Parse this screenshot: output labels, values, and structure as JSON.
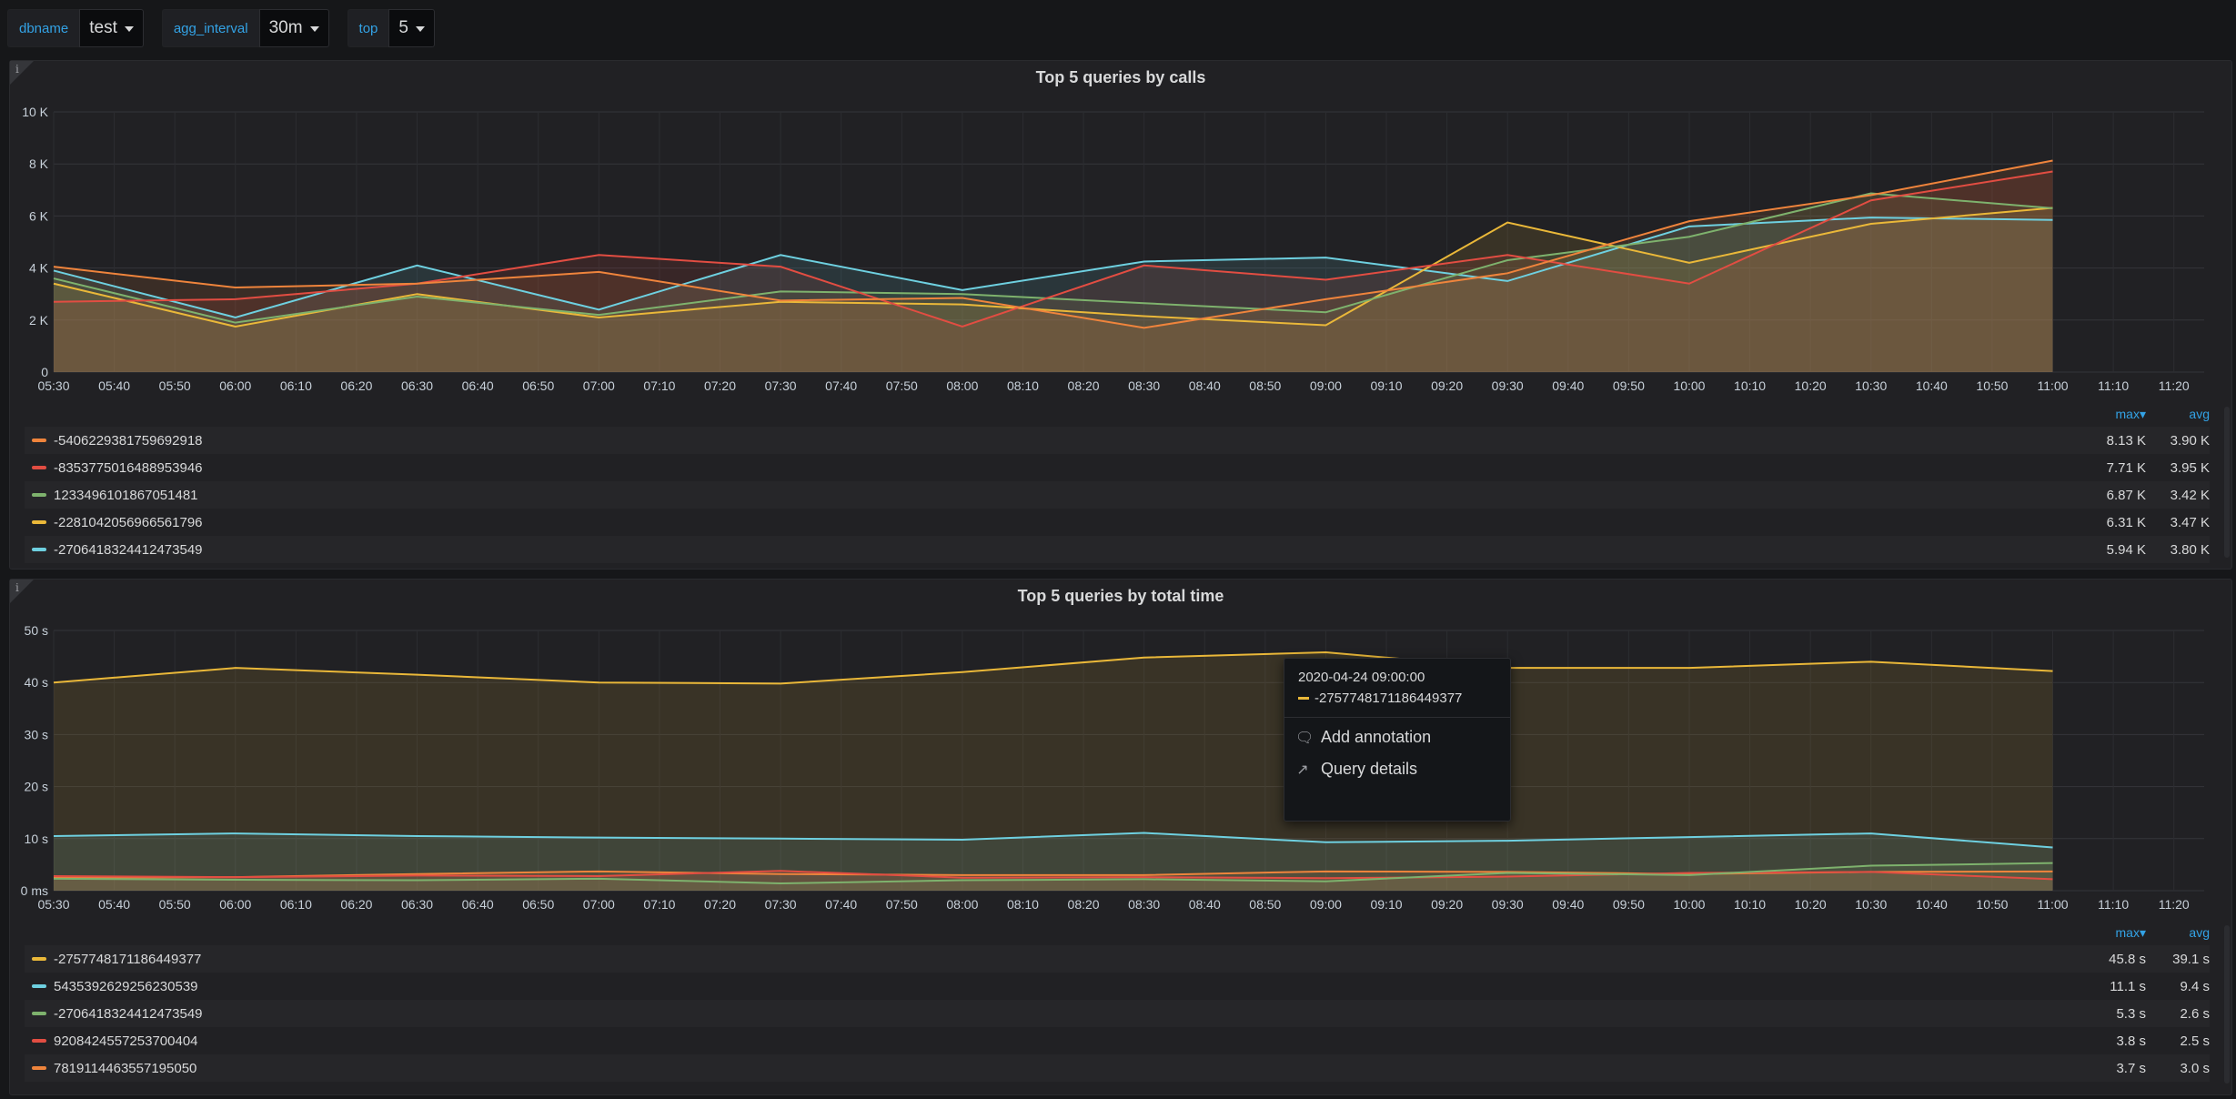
{
  "variables": [
    {
      "label": "dbname",
      "value": "test"
    },
    {
      "label": "agg_interval",
      "value": "30m"
    },
    {
      "label": "top",
      "value": "5"
    }
  ],
  "colors": {
    "orange": "#ef843c",
    "red": "#e24d42",
    "green": "#7eb26d",
    "yellow": "#eab839",
    "cyan": "#6ed0e0",
    "accent": "#33a2e5"
  },
  "time_labels": [
    "05:30",
    "05:40",
    "05:50",
    "06:00",
    "06:10",
    "06:20",
    "06:30",
    "06:40",
    "06:50",
    "07:00",
    "07:10",
    "07:20",
    "07:30",
    "07:40",
    "07:50",
    "08:00",
    "08:10",
    "08:20",
    "08:30",
    "08:40",
    "08:50",
    "09:00",
    "09:10",
    "09:20",
    "09:30",
    "09:40",
    "09:50",
    "10:00",
    "10:10",
    "10:20",
    "10:30",
    "10:40",
    "10:50",
    "11:00",
    "11:10",
    "11:20"
  ],
  "panels": [
    {
      "info_icon": "i",
      "title": "Top 5 queries by calls",
      "legend_headers": {
        "max": "max▾",
        "avg": "avg"
      },
      "legend": [
        {
          "name": "-5406229381759692918",
          "color": "#ef843c",
          "max": "8.13 K",
          "avg": "3.90 K"
        },
        {
          "name": "-8353775016488953946",
          "color": "#e24d42",
          "max": "7.71 K",
          "avg": "3.95 K"
        },
        {
          "name": "1233496101867051481",
          "color": "#7eb26d",
          "max": "6.87 K",
          "avg": "3.42 K"
        },
        {
          "name": "-2281042056966561796",
          "color": "#eab839",
          "max": "6.31 K",
          "avg": "3.47 K"
        },
        {
          "name": "-2706418324412473549",
          "color": "#6ed0e0",
          "max": "5.94 K",
          "avg": "3.80 K"
        }
      ],
      "chart_data": {
        "type": "area",
        "title": "Top 5 queries by calls",
        "y_ticks": [
          "0",
          "2 K",
          "4 K",
          "6 K",
          "8 K",
          "10 K"
        ],
        "ylim": [
          0,
          10000
        ],
        "x": [
          "05:30",
          "06:00",
          "06:30",
          "07:00",
          "07:30",
          "08:00",
          "08:30",
          "09:00",
          "09:30",
          "10:00",
          "10:30",
          "11:00"
        ],
        "xlim_minutes": [
          330,
          685
        ],
        "series": [
          {
            "name": "-5406229381759692918",
            "color": "#ef843c",
            "values": [
              4050,
              3250,
              3400,
              3850,
              2750,
              2850,
              1700,
              2800,
              3800,
              5800,
              6800,
              8130
            ]
          },
          {
            "name": "-8353775016488953946",
            "color": "#e24d42",
            "values": [
              2700,
              2800,
              3400,
              4500,
              4050,
              1750,
              4100,
              3550,
              4500,
              3400,
              6600,
              7710
            ]
          },
          {
            "name": "1233496101867051481",
            "color": "#7eb26d",
            "values": [
              3600,
              1900,
              2900,
              2200,
              3100,
              3000,
              2650,
              2300,
              4300,
              5200,
              6870,
              6300
            ]
          },
          {
            "name": "-2281042056966561796",
            "color": "#eab839",
            "values": [
              3400,
              1750,
              3000,
              2100,
              2700,
              2600,
              2150,
              1800,
              5750,
              4200,
              5700,
              6310
            ]
          },
          {
            "name": "-2706418324412473549",
            "color": "#6ed0e0",
            "values": [
              3900,
              2100,
              4100,
              2400,
              4500,
              3150,
              4250,
              4400,
              3500,
              5600,
              5940,
              5850
            ]
          }
        ]
      }
    },
    {
      "info_icon": "i",
      "title": "Top 5 queries by total time",
      "legend_headers": {
        "max": "max▾",
        "avg": "avg"
      },
      "legend": [
        {
          "name": "-2757748171186449377",
          "color": "#eab839",
          "max": "45.8 s",
          "avg": "39.1 s"
        },
        {
          "name": "5435392629256230539",
          "color": "#6ed0e0",
          "max": "11.1 s",
          "avg": "9.4 s"
        },
        {
          "name": "-2706418324412473549",
          "color": "#7eb26d",
          "max": "5.3 s",
          "avg": "2.6 s"
        },
        {
          "name": "9208424557253700404",
          "color": "#e24d42",
          "max": "3.8 s",
          "avg": "2.5 s"
        },
        {
          "name": "7819114463557195050",
          "color": "#ef843c",
          "max": "3.7 s",
          "avg": "3.0 s"
        }
      ],
      "chart_data": {
        "type": "area",
        "title": "Top 5 queries by total time",
        "y_ticks": [
          "0 ms",
          "10 s",
          "20 s",
          "30 s",
          "40 s",
          "50 s"
        ],
        "ylim": [
          0,
          50
        ],
        "x": [
          "05:30",
          "06:00",
          "06:30",
          "07:00",
          "07:30",
          "08:00",
          "08:30",
          "09:00",
          "09:30",
          "10:00",
          "10:30",
          "11:00"
        ],
        "xlim_minutes": [
          330,
          685
        ],
        "series": [
          {
            "name": "-2757748171186449377",
            "color": "#eab839",
            "values": [
              40,
              42.8,
              41.5,
              40,
              39.8,
              42,
              44.8,
              45.8,
              42.8,
              42.8,
              44,
              42.2
            ]
          },
          {
            "name": "5435392629256230539",
            "color": "#6ed0e0",
            "values": [
              10.5,
              11,
              10.5,
              10.2,
              10,
              9.8,
              11.1,
              9.3,
              9.6,
              10.3,
              11,
              8.3
            ]
          },
          {
            "name": "-2706418324412473549",
            "color": "#7eb26d",
            "values": [
              2.3,
              2.1,
              2,
              2.3,
              1.4,
              2,
              2.2,
              1.8,
              3.4,
              3,
              4.8,
              5.3
            ]
          },
          {
            "name": "9208424557253700404",
            "color": "#e24d42",
            "values": [
              2.8,
              2.6,
              2.9,
              2.8,
              3.8,
              2.5,
              2.6,
              2.4,
              2.7,
              3.4,
              3.6,
              2.2
            ]
          },
          {
            "name": "7819114463557195050",
            "color": "#ef843c",
            "values": [
              2.5,
              2.6,
              3.2,
              3.7,
              3.2,
              3,
              3,
              3.7,
              3.6,
              3.2,
              3.6,
              3.7
            ]
          }
        ]
      }
    }
  ],
  "tooltip": {
    "time": "2020-04-24 09:00:00",
    "series_name": "-2757748171186449377",
    "add_annotation": "Add annotation",
    "query_details": "Query details"
  }
}
